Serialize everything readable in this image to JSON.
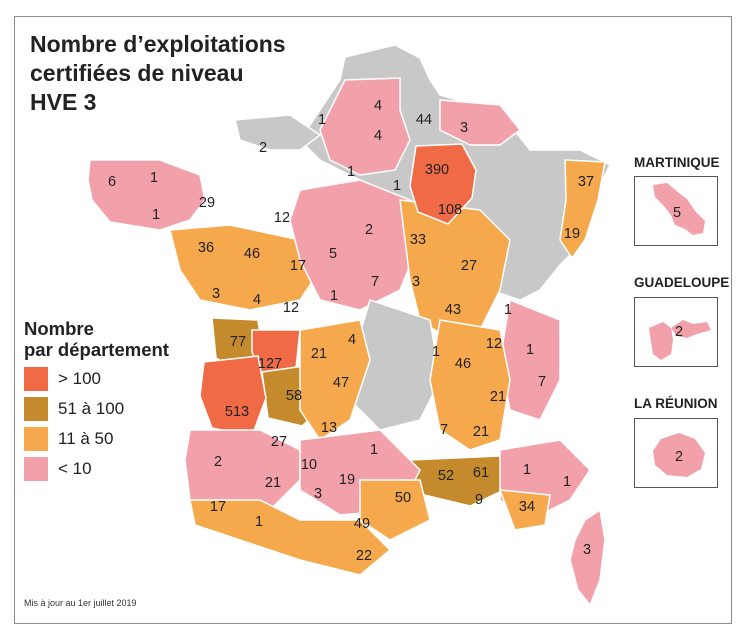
{
  "title_lines": [
    "Nombre d’exploitations",
    "certifiées de niveau",
    "HVE 3"
  ],
  "colors": {
    "gt100": "#ef6a45",
    "51to100": "#c58a2c",
    "11to50": "#f5a94c",
    "lt10": "#f2a1ab",
    "none": "#c8c8c8",
    "border": "#ffffff"
  },
  "legend": {
    "title_lines": [
      "Nombre",
      "par département"
    ],
    "items": [
      {
        "label": "> 100",
        "color": "#ef6a45"
      },
      {
        "label": "51 à 100",
        "color": "#c58a2c"
      },
      {
        "label": "11 à 50",
        "color": "#f5a94c"
      },
      {
        "label": "< 10",
        "color": "#f2a1ab"
      }
    ]
  },
  "overseas": [
    {
      "name": "MARTINIQUE",
      "value": "5"
    },
    {
      "name": "GUADELOUPE",
      "value": "2"
    },
    {
      "name": "LA RÉUNION",
      "value": "2"
    }
  ],
  "departments": [
    {
      "value": "4",
      "category": "lt10"
    },
    {
      "value": "1",
      "category": "lt10"
    },
    {
      "value": "4",
      "category": "lt10"
    },
    {
      "value": "44",
      "category": "11to50"
    },
    {
      "value": "3",
      "category": "lt10"
    },
    {
      "value": "2",
      "category": "lt10"
    },
    {
      "value": "390",
      "category": "gt100"
    },
    {
      "value": "6",
      "category": "lt10"
    },
    {
      "value": "1",
      "category": "lt10"
    },
    {
      "value": "1",
      "category": "lt10"
    },
    {
      "value": "1",
      "category": "lt10"
    },
    {
      "value": "37",
      "category": "11to50"
    },
    {
      "value": "29",
      "category": "11to50"
    },
    {
      "value": "108",
      "category": "gt100"
    },
    {
      "value": "1",
      "category": "lt10"
    },
    {
      "value": "12",
      "category": "11to50"
    },
    {
      "value": "2",
      "category": "lt10"
    },
    {
      "value": "19",
      "category": "11to50"
    },
    {
      "value": "33",
      "category": "11to50"
    },
    {
      "value": "36",
      "category": "11to50"
    },
    {
      "value": "46",
      "category": "11to50"
    },
    {
      "value": "17",
      "category": "11to50"
    },
    {
      "value": "5",
      "category": "lt10"
    },
    {
      "value": "27",
      "category": "11to50"
    },
    {
      "value": "3",
      "category": "lt10"
    },
    {
      "value": "4",
      "category": "lt10"
    },
    {
      "value": "1",
      "category": "lt10"
    },
    {
      "value": "7",
      "category": "lt10"
    },
    {
      "value": "3",
      "category": "lt10"
    },
    {
      "value": "12",
      "category": "11to50"
    },
    {
      "value": "43",
      "category": "11to50"
    },
    {
      "value": "1",
      "category": "lt10"
    },
    {
      "value": "77",
      "category": "51to100"
    },
    {
      "value": "4",
      "category": "lt10"
    },
    {
      "value": "12",
      "category": "11to50"
    },
    {
      "value": "1",
      "category": "lt10"
    },
    {
      "value": "127",
      "category": "gt100"
    },
    {
      "value": "21",
      "category": "11to50"
    },
    {
      "value": "1",
      "category": "lt10"
    },
    {
      "value": "46",
      "category": "11to50"
    },
    {
      "value": "47",
      "category": "11to50"
    },
    {
      "value": "7",
      "category": "lt10"
    },
    {
      "value": "58",
      "category": "51to100"
    },
    {
      "value": "21",
      "category": "11to50"
    },
    {
      "value": "513",
      "category": "gt100"
    },
    {
      "value": "13",
      "category": "11to50"
    },
    {
      "value": "27",
      "category": "11to50"
    },
    {
      "value": "7",
      "category": "lt10"
    },
    {
      "value": "21",
      "category": "11to50"
    },
    {
      "value": "1",
      "category": "lt10"
    },
    {
      "value": "2",
      "category": "lt10"
    },
    {
      "value": "10",
      "category": "11to50"
    },
    {
      "value": "52",
      "category": "51to100"
    },
    {
      "value": "61",
      "category": "51to100"
    },
    {
      "value": "1",
      "category": "lt10"
    },
    {
      "value": "19",
      "category": "11to50"
    },
    {
      "value": "21",
      "category": "11to50"
    },
    {
      "value": "1",
      "category": "lt10"
    },
    {
      "value": "3",
      "category": "lt10"
    },
    {
      "value": "50",
      "category": "11to50"
    },
    {
      "value": "17",
      "category": "11to50"
    },
    {
      "value": "9",
      "category": "lt10"
    },
    {
      "value": "34",
      "category": "11to50"
    },
    {
      "value": "1",
      "category": "lt10"
    },
    {
      "value": "49",
      "category": "11to50"
    },
    {
      "value": "3",
      "category": "lt10"
    },
    {
      "value": "22",
      "category": "11to50"
    }
  ],
  "footnote": "Mis à jour au 1er juillet 2019"
}
